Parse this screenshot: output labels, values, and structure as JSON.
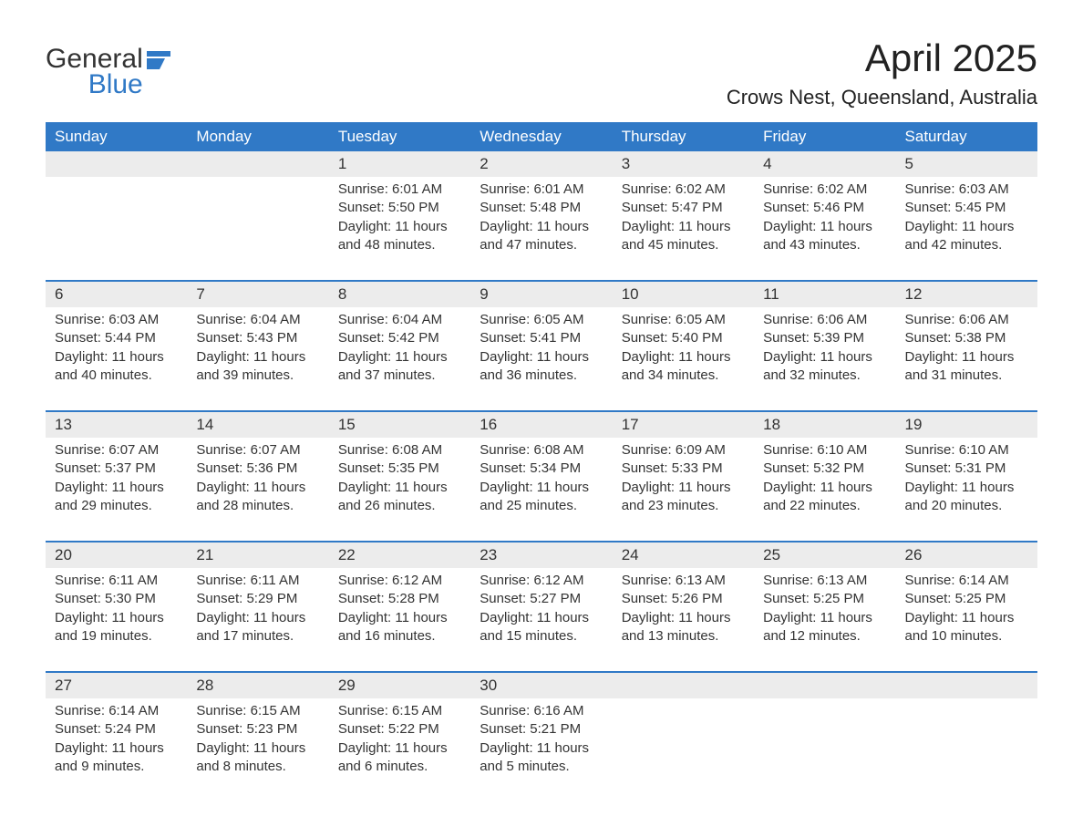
{
  "logo": {
    "word1": "General",
    "word2": "Blue",
    "icon_color": "#3079c6"
  },
  "title": "April 2025",
  "location": "Crows Nest, Queensland, Australia",
  "colors": {
    "header_bg": "#3079c6",
    "header_text": "#ffffff",
    "daynum_bg": "#ececec",
    "row_divider": "#3079c6",
    "body_text": "#333333",
    "page_bg": "#ffffff"
  },
  "fonts": {
    "title_size": 42,
    "location_size": 22,
    "dow_size": 17,
    "daynum_size": 17,
    "body_size": 15
  },
  "daysOfWeek": [
    "Sunday",
    "Monday",
    "Tuesday",
    "Wednesday",
    "Thursday",
    "Friday",
    "Saturday"
  ],
  "calendar": {
    "type": "table",
    "columns": 7,
    "startOffset": 2,
    "days": [
      {
        "n": "1",
        "sunrise": "6:01 AM",
        "sunset": "5:50 PM",
        "dl_h": "11",
        "dl_m": "48"
      },
      {
        "n": "2",
        "sunrise": "6:01 AM",
        "sunset": "5:48 PM",
        "dl_h": "11",
        "dl_m": "47"
      },
      {
        "n": "3",
        "sunrise": "6:02 AM",
        "sunset": "5:47 PM",
        "dl_h": "11",
        "dl_m": "45"
      },
      {
        "n": "4",
        "sunrise": "6:02 AM",
        "sunset": "5:46 PM",
        "dl_h": "11",
        "dl_m": "43"
      },
      {
        "n": "5",
        "sunrise": "6:03 AM",
        "sunset": "5:45 PM",
        "dl_h": "11",
        "dl_m": "42"
      },
      {
        "n": "6",
        "sunrise": "6:03 AM",
        "sunset": "5:44 PM",
        "dl_h": "11",
        "dl_m": "40"
      },
      {
        "n": "7",
        "sunrise": "6:04 AM",
        "sunset": "5:43 PM",
        "dl_h": "11",
        "dl_m": "39"
      },
      {
        "n": "8",
        "sunrise": "6:04 AM",
        "sunset": "5:42 PM",
        "dl_h": "11",
        "dl_m": "37"
      },
      {
        "n": "9",
        "sunrise": "6:05 AM",
        "sunset": "5:41 PM",
        "dl_h": "11",
        "dl_m": "36"
      },
      {
        "n": "10",
        "sunrise": "6:05 AM",
        "sunset": "5:40 PM",
        "dl_h": "11",
        "dl_m": "34"
      },
      {
        "n": "11",
        "sunrise": "6:06 AM",
        "sunset": "5:39 PM",
        "dl_h": "11",
        "dl_m": "32"
      },
      {
        "n": "12",
        "sunrise": "6:06 AM",
        "sunset": "5:38 PM",
        "dl_h": "11",
        "dl_m": "31"
      },
      {
        "n": "13",
        "sunrise": "6:07 AM",
        "sunset": "5:37 PM",
        "dl_h": "11",
        "dl_m": "29"
      },
      {
        "n": "14",
        "sunrise": "6:07 AM",
        "sunset": "5:36 PM",
        "dl_h": "11",
        "dl_m": "28"
      },
      {
        "n": "15",
        "sunrise": "6:08 AM",
        "sunset": "5:35 PM",
        "dl_h": "11",
        "dl_m": "26"
      },
      {
        "n": "16",
        "sunrise": "6:08 AM",
        "sunset": "5:34 PM",
        "dl_h": "11",
        "dl_m": "25"
      },
      {
        "n": "17",
        "sunrise": "6:09 AM",
        "sunset": "5:33 PM",
        "dl_h": "11",
        "dl_m": "23"
      },
      {
        "n": "18",
        "sunrise": "6:10 AM",
        "sunset": "5:32 PM",
        "dl_h": "11",
        "dl_m": "22"
      },
      {
        "n": "19",
        "sunrise": "6:10 AM",
        "sunset": "5:31 PM",
        "dl_h": "11",
        "dl_m": "20"
      },
      {
        "n": "20",
        "sunrise": "6:11 AM",
        "sunset": "5:30 PM",
        "dl_h": "11",
        "dl_m": "19"
      },
      {
        "n": "21",
        "sunrise": "6:11 AM",
        "sunset": "5:29 PM",
        "dl_h": "11",
        "dl_m": "17"
      },
      {
        "n": "22",
        "sunrise": "6:12 AM",
        "sunset": "5:28 PM",
        "dl_h": "11",
        "dl_m": "16"
      },
      {
        "n": "23",
        "sunrise": "6:12 AM",
        "sunset": "5:27 PM",
        "dl_h": "11",
        "dl_m": "15"
      },
      {
        "n": "24",
        "sunrise": "6:13 AM",
        "sunset": "5:26 PM",
        "dl_h": "11",
        "dl_m": "13"
      },
      {
        "n": "25",
        "sunrise": "6:13 AM",
        "sunset": "5:25 PM",
        "dl_h": "11",
        "dl_m": "12"
      },
      {
        "n": "26",
        "sunrise": "6:14 AM",
        "sunset": "5:25 PM",
        "dl_h": "11",
        "dl_m": "10"
      },
      {
        "n": "27",
        "sunrise": "6:14 AM",
        "sunset": "5:24 PM",
        "dl_h": "11",
        "dl_m": "9"
      },
      {
        "n": "28",
        "sunrise": "6:15 AM",
        "sunset": "5:23 PM",
        "dl_h": "11",
        "dl_m": "8"
      },
      {
        "n": "29",
        "sunrise": "6:15 AM",
        "sunset": "5:22 PM",
        "dl_h": "11",
        "dl_m": "6"
      },
      {
        "n": "30",
        "sunrise": "6:16 AM",
        "sunset": "5:21 PM",
        "dl_h": "11",
        "dl_m": "5"
      }
    ]
  },
  "labels": {
    "sunrise": "Sunrise: ",
    "sunset": "Sunset: ",
    "daylight_prefix": "Daylight: ",
    "hours_word": " hours and ",
    "minutes_word": " minutes."
  }
}
